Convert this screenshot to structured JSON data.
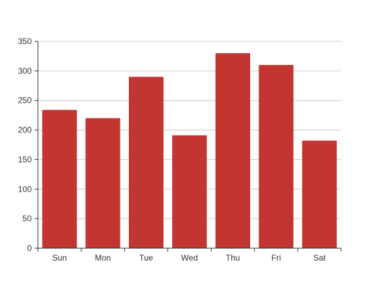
{
  "colors": {
    "bar": "#c23531",
    "grid": "#cccccc",
    "axis": "#333333",
    "text": "#333333",
    "background": "#ffffff"
  },
  "chart_data": {
    "type": "bar",
    "title": "",
    "xlabel": "",
    "ylabel": "",
    "categories": [
      "Sun",
      "Mon",
      "Tue",
      "Wed",
      "Thu",
      "Fri",
      "Sat"
    ],
    "values": [
      234,
      220,
      290,
      191,
      330,
      310,
      182
    ],
    "ylim": [
      0,
      350
    ],
    "yticks": [
      0,
      50,
      100,
      150,
      200,
      250,
      300,
      350
    ],
    "grid": true,
    "legend": "none"
  }
}
